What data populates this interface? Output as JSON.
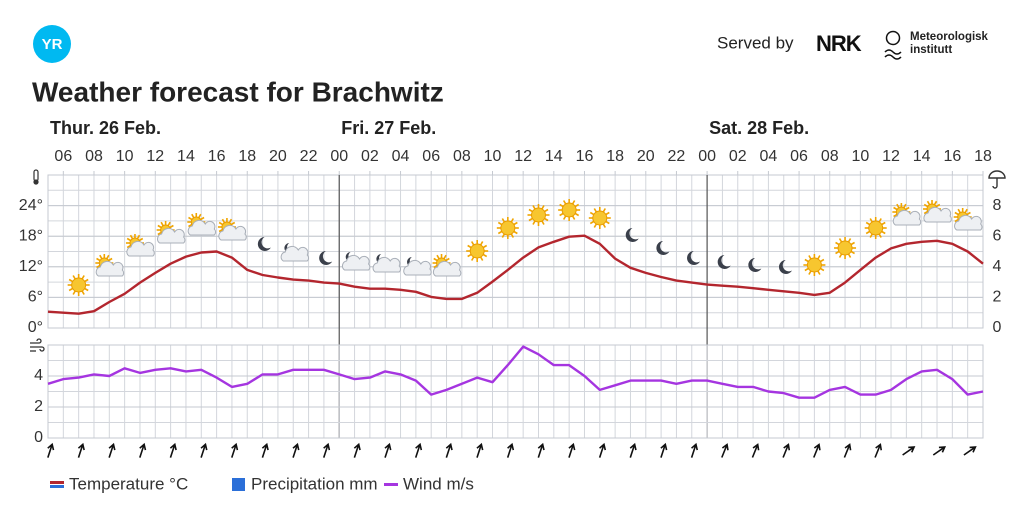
{
  "header": {
    "logo": "YR",
    "served_by": "Served by",
    "nrk": "NRK",
    "met_line1": "Meteorologisk",
    "met_line2": "institutt"
  },
  "legend": [
    "Temperature °C",
    "Precipitation mm",
    "Wind m/s"
  ],
  "chart_data": [
    {
      "type": "line",
      "title": "Weather forecast for Brachwitz",
      "x": [
        5,
        6,
        7,
        8,
        9,
        10,
        11,
        12,
        13,
        14,
        15,
        16,
        17,
        18,
        19,
        20,
        21,
        22,
        23,
        24,
        25,
        26,
        27,
        28,
        29,
        30,
        31,
        32,
        33,
        34,
        35,
        36,
        37,
        38,
        39,
        40,
        41,
        42,
        43,
        44,
        45,
        46,
        47,
        48,
        49,
        50,
        51,
        52,
        53,
        54,
        55,
        56,
        57,
        58,
        59,
        60,
        61,
        62,
        63,
        64,
        65,
        66
      ],
      "xlim": [
        5,
        66
      ],
      "xticks": [
        {
          "value": 6,
          "label": "06"
        },
        {
          "value": 8,
          "label": "08"
        },
        {
          "value": 10,
          "label": "10"
        },
        {
          "value": 12,
          "label": "12"
        },
        {
          "value": 14,
          "label": "14"
        },
        {
          "value": 16,
          "label": "16"
        },
        {
          "value": 18,
          "label": "18"
        },
        {
          "value": 20,
          "label": "20"
        },
        {
          "value": 22,
          "label": "22"
        },
        {
          "value": 24,
          "label": "00"
        },
        {
          "value": 26,
          "label": "02"
        },
        {
          "value": 28,
          "label": "04"
        },
        {
          "value": 30,
          "label": "06"
        },
        {
          "value": 32,
          "label": "08"
        },
        {
          "value": 34,
          "label": "10"
        },
        {
          "value": 36,
          "label": "12"
        },
        {
          "value": 38,
          "label": "14"
        },
        {
          "value": 40,
          "label": "16"
        },
        {
          "value": 42,
          "label": "18"
        },
        {
          "value": 44,
          "label": "20"
        },
        {
          "value": 46,
          "label": "22"
        },
        {
          "value": 48,
          "label": "00"
        },
        {
          "value": 50,
          "label": "02"
        },
        {
          "value": 52,
          "label": "04"
        },
        {
          "value": 54,
          "label": "06"
        },
        {
          "value": 56,
          "label": "08"
        },
        {
          "value": 58,
          "label": "10"
        },
        {
          "value": 60,
          "label": "12"
        },
        {
          "value": 62,
          "label": "14"
        },
        {
          "value": 64,
          "label": "16"
        },
        {
          "value": 66,
          "label": "18"
        }
      ],
      "days": [
        {
          "value": 0,
          "label": "Thur. 26 Feb."
        },
        {
          "value": 24,
          "label": "Fri. 27 Feb."
        },
        {
          "value": 48,
          "label": "Sat. 28 Feb."
        }
      ],
      "ylim": [
        0,
        30
      ],
      "yticks": [
        {
          "value": 0,
          "label": "0°"
        },
        {
          "value": 6,
          "label": "6°"
        },
        {
          "value": 12,
          "label": "12°"
        },
        {
          "value": 18,
          "label": "18°"
        },
        {
          "value": 24,
          "label": "24°"
        }
      ],
      "y2lim": [
        0,
        10
      ],
      "y2ticks": [
        0,
        2,
        4,
        6,
        8
      ],
      "grid": true,
      "series": [
        {
          "name": "Temperature °C",
          "color": "#b3262e",
          "values": [
            3.2,
            3.0,
            2.8,
            3.3,
            5.1,
            6.7,
            8.9,
            10.8,
            12.6,
            14,
            14.8,
            15,
            13.8,
            11.4,
            10.4,
            9.9,
            9.5,
            9.3,
            8.9,
            8.7,
            8.1,
            7.7,
            7.7,
            7.5,
            7.1,
            6.1,
            5.7,
            5.7,
            6.9,
            9.1,
            11.4,
            13.8,
            15.8,
            16.9,
            17.9,
            18.1,
            16.5,
            13.6,
            11.8,
            10.8,
            10,
            9.3,
            8.9,
            8.5,
            8.3,
            8.1,
            7.8,
            7.5,
            7.2,
            6.9,
            6.5,
            6.9,
            8.9,
            11.4,
            13.8,
            15.6,
            16.5,
            16.9,
            17.1,
            16.5,
            15,
            12.6
          ]
        },
        {
          "name": "Precipitation mm",
          "color": "#2b6fd8",
          "axis": "y2",
          "values": [
            0,
            0,
            0,
            0,
            0,
            0,
            0,
            0,
            0,
            0,
            0,
            0,
            0,
            0,
            0,
            0,
            0,
            0,
            0,
            0,
            0,
            0,
            0,
            0,
            0,
            0,
            0,
            0,
            0,
            0,
            0,
            0,
            0,
            0,
            0,
            0,
            0,
            0,
            0,
            0,
            0,
            0,
            0,
            0,
            0,
            0,
            0,
            0,
            0,
            0,
            0,
            0,
            0,
            0,
            0,
            0,
            0,
            0,
            0,
            0,
            0,
            0
          ]
        }
      ]
    },
    {
      "type": "line",
      "x": [
        5,
        6,
        7,
        8,
        9,
        10,
        11,
        12,
        13,
        14,
        15,
        16,
        17,
        18,
        19,
        20,
        21,
        22,
        23,
        24,
        25,
        26,
        27,
        28,
        29,
        30,
        31,
        32,
        33,
        34,
        35,
        36,
        37,
        38,
        39,
        40,
        41,
        42,
        43,
        44,
        45,
        46,
        47,
        48,
        49,
        50,
        51,
        52,
        53,
        54,
        55,
        56,
        57,
        58,
        59,
        60,
        61,
        62,
        63,
        64,
        65,
        66
      ],
      "xlim": [
        5,
        66
      ],
      "ylim": [
        0,
        6
      ],
      "yticks": [
        0,
        2,
        4
      ],
      "grid": true,
      "series": [
        {
          "name": "Wind m/s",
          "color": "#a535e0",
          "values": [
            3.5,
            3.8,
            3.9,
            4.1,
            4.0,
            4.5,
            4.2,
            4.4,
            4.5,
            4.3,
            4.4,
            3.9,
            3.3,
            3.5,
            4.1,
            4.1,
            4.4,
            4.4,
            4.4,
            4.1,
            3.8,
            3.9,
            4.3,
            4.1,
            3.7,
            2.8,
            3.1,
            3.5,
            3.9,
            3.6,
            4.7,
            5.9,
            5.4,
            4.7,
            4.7,
            4.0,
            3.1,
            3.4,
            3.7,
            3.7,
            3.7,
            3.5,
            3.7,
            3.7,
            3.5,
            3.3,
            3.3,
            3.0,
            2.9,
            2.6,
            2.6,
            3.1,
            3.3,
            2.8,
            2.8,
            3.1,
            3.8,
            4.3,
            4.4,
            3.8,
            2.8,
            3.0
          ]
        }
      ]
    }
  ]
}
